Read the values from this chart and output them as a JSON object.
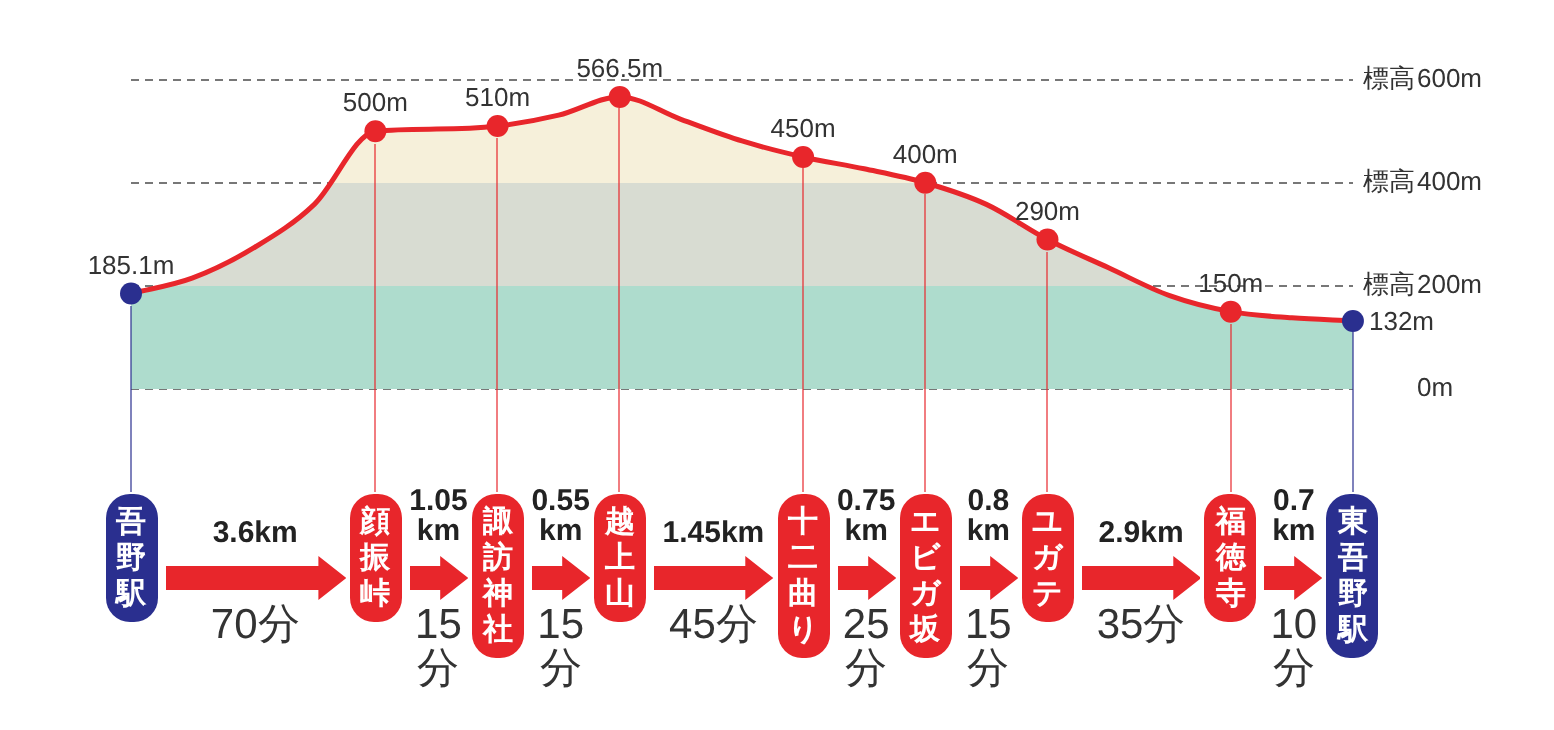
{
  "chart_data": {
    "type": "area",
    "categories": [
      "吾野駅",
      null,
      null,
      null,
      "顔振峠",
      null,
      "諏訪神社",
      null,
      "越上山",
      null,
      null,
      "十二曲り",
      null,
      "エビガ坂",
      null,
      "ユガテ",
      null,
      null,
      "福徳寺",
      null,
      "東吾野駅"
    ],
    "series": [
      {
        "color": "#e8262b",
        "marker": "none",
        "values": [
          185.1,
          215,
          273,
          358,
          500,
          504,
          510,
          531,
          566.5,
          523,
          481,
          450,
          427,
          400,
          358,
          290,
          235,
          181,
          150,
          138,
          132
        ]
      },
      {
        "type": "scatter",
        "x": [
          "吾野駅",
          "顔振峠",
          "諏訪神社",
          "越上山",
          "十二曲り",
          "エビガ坂",
          "ユガテ",
          "福徳寺",
          "東吾野駅"
        ],
        "values": [
          185.1,
          500,
          510,
          566.5,
          450,
          400,
          290,
          150,
          132
        ],
        "colors": [
          "#2a2f8f",
          "#e8262b",
          "#e8262b",
          "#e8262b",
          "#e8262b",
          "#e8262b",
          "#e8262b",
          "#e8262b",
          "#2a2f8f"
        ],
        "value_labels": [
          "185.1m",
          "500m",
          "510m",
          "566.5m",
          "450m",
          "400m",
          "290m",
          "150m",
          "132m"
        ]
      }
    ],
    "ylim": [
      0,
      600
    ],
    "yticks": [
      {
        "value": 0,
        "label": "0m"
      },
      {
        "value": 200,
        "label": "200m"
      },
      {
        "value": 400,
        "label": "400m"
      },
      {
        "value": 600,
        "label": "600m"
      }
    ],
    "ylabel": "標高",
    "grid": "y",
    "marker": "circle",
    "legend": false,
    "annotations": [
      "3.6km",
      "70分",
      "1.05 km",
      "15分",
      "0.55 km",
      "15分",
      "1.45km",
      "45分",
      "0.75 km",
      "25分",
      "0.8 km",
      "15分",
      "2.9km",
      "35分",
      "0.7 km",
      "10分"
    ]
  }
}
